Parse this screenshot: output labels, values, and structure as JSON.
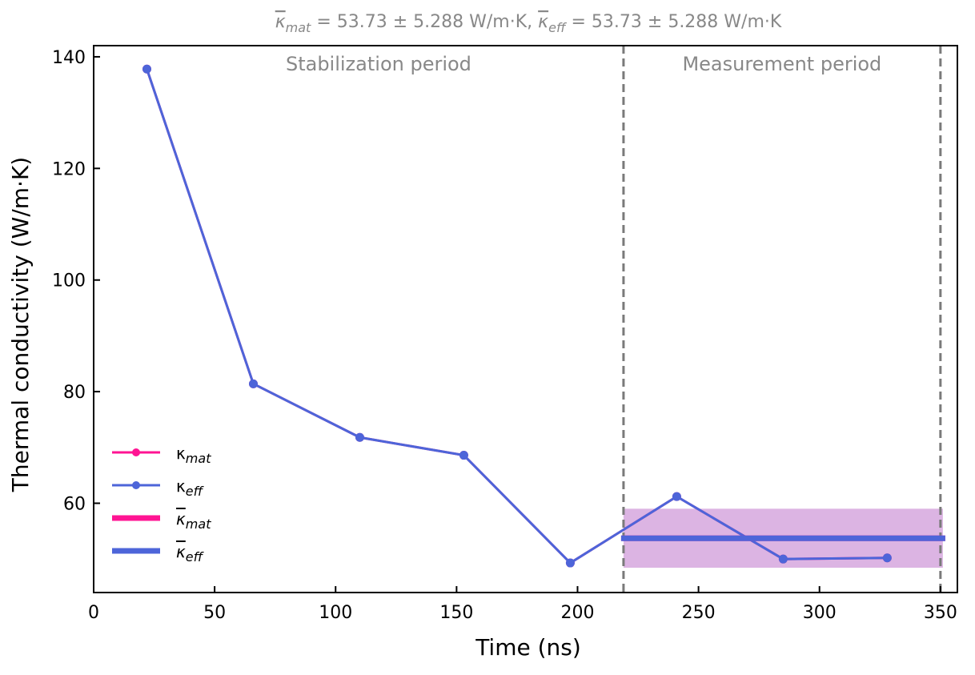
{
  "chart_data": {
    "type": "line",
    "title": {
      "kappa_mat_symbol": "κ",
      "mat_sub": "mat",
      "mat_value": " = 53.73 ± 5.288 W/m·K, ",
      "kappa_eff_symbol": "κ",
      "eff_sub": "eff",
      "eff_value": " = 53.73 ± 5.288 W/m·K"
    },
    "xlabel": "Time (ns)",
    "ylabel": "Thermal conductivity (W/m·K)",
    "xlim": [
      0,
      357
    ],
    "ylim": [
      44,
      142
    ],
    "xticks": [
      0,
      50,
      100,
      150,
      200,
      250,
      300,
      350
    ],
    "yticks": [
      60,
      80,
      100,
      120,
      140
    ],
    "regions": {
      "stabilization_label": "Stabilization period",
      "measurement_label": "Measurement period",
      "stabilization_range": [
        0,
        219
      ],
      "measurement_range": [
        219,
        350
      ]
    },
    "series": [
      {
        "name": "κ_mat",
        "color": "#ff1493",
        "x": [
          22,
          66,
          110,
          153,
          197,
          241,
          285,
          328
        ],
        "y": [
          137.8,
          81.4,
          71.8,
          68.6,
          49.3,
          61.2,
          50.0,
          50.2
        ]
      },
      {
        "name": "κ_eff",
        "color": "#4d65d9",
        "x": [
          22,
          66,
          110,
          153,
          197,
          241,
          285,
          328
        ],
        "y": [
          137.8,
          81.4,
          71.8,
          68.6,
          49.3,
          61.2,
          50.0,
          50.2
        ]
      }
    ],
    "mean_lines": {
      "x_range": [
        219,
        351
      ],
      "mat_mean": 53.73,
      "eff_mean": 53.73,
      "std": 5.288,
      "mat_color": "#ff1493",
      "eff_color": "#4d65d9",
      "band_color": "#dcb4e3"
    },
    "legend": {
      "position": "lower-left",
      "entries": [
        {
          "symbol": "κ",
          "sub": "mat",
          "kind": "marker-line",
          "color": "#ff1493",
          "overline": false
        },
        {
          "symbol": "κ",
          "sub": "eff",
          "kind": "marker-line",
          "color": "#4d65d9",
          "overline": false
        },
        {
          "symbol": "κ",
          "sub": "mat",
          "kind": "thick-line",
          "color": "#ff1493",
          "overline": true
        },
        {
          "symbol": "κ",
          "sub": "eff",
          "kind": "thick-line",
          "color": "#4d65d9",
          "overline": true
        }
      ]
    }
  }
}
